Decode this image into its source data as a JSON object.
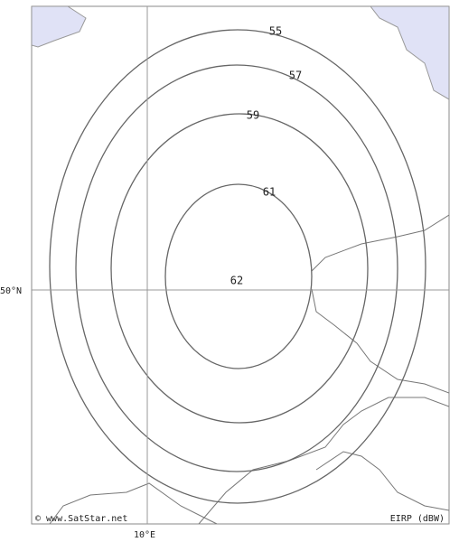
{
  "map": {
    "contours": [
      {
        "label": "55"
      },
      {
        "label": "57"
      },
      {
        "label": "59"
      },
      {
        "label": "61"
      },
      {
        "label": "62"
      }
    ],
    "latitude_label": "50°N",
    "longitude_label": "10°E",
    "copyright": "© www.SatStar.net",
    "unit_label": "EIRP (dBW)"
  }
}
